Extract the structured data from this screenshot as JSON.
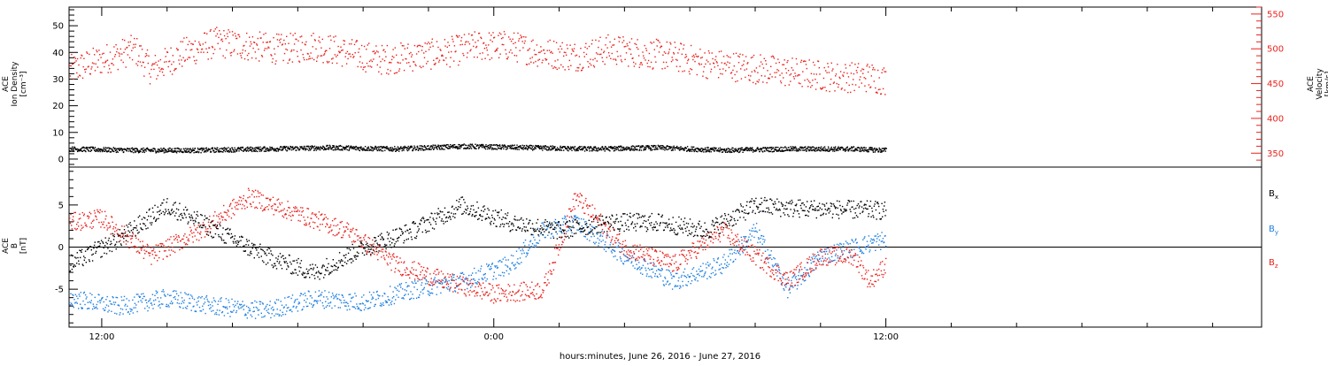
{
  "x_title": "hours:minutes, June 26, 2016 - June 27, 2016",
  "x_ticks": [
    "12:00",
    "0:00",
    "12:00"
  ],
  "colors": {
    "black": "#000000",
    "red": "#e8221c",
    "blue": "#1f7fe0"
  },
  "chart_data": [
    {
      "type": "scatter",
      "panel": "top",
      "left_ylabel_lines": [
        "ACE",
        "Ion Density",
        "[cm⁻³]"
      ],
      "right_ylabel_lines": [
        "ACE",
        "Velocity",
        "[km/s]"
      ],
      "left_ylim": [
        -3,
        57
      ],
      "left_ticks": [
        0,
        10,
        20,
        30,
        40,
        50
      ],
      "left_tick_labels": [
        "0",
        "10",
        "20",
        "30",
        "40",
        "50"
      ],
      "right_ylim": [
        330,
        560
      ],
      "right_ticks": [
        350,
        400,
        450,
        500,
        550
      ],
      "right_tick_labels": [
        "350",
        "400",
        "450",
        "500",
        "550"
      ],
      "x_unit": "hours since 2016-06-26 00:00",
      "xlim": [
        11.0,
        47.5
      ],
      "series": [
        {
          "name": "",
          "axis": "left",
          "color": "#000000",
          "x": [
            11.0,
            13.0,
            15.0,
            17.0,
            19.0,
            21.0,
            23.0,
            25.0,
            27.0,
            29.0,
            31.0,
            33.0,
            35.0,
            36.0
          ],
          "y": [
            4,
            3.5,
            3.5,
            4,
            4.5,
            4,
            5,
            4.5,
            4,
            4.5,
            3.5,
            4,
            4,
            3.5
          ]
        },
        {
          "name": "",
          "axis": "right",
          "color": "#e8221c",
          "x": [
            11.0,
            12.0,
            13.0,
            13.5,
            14.5,
            15.5,
            16.5,
            17.5,
            18.5,
            19.5,
            20.5,
            21.5,
            22.5,
            23.5,
            24.5,
            25.5,
            26.5,
            27.5,
            28.5,
            29.5,
            30.5,
            31.5,
            32.5,
            33.5,
            34.5,
            35.5,
            36.0
          ],
          "y": [
            470,
            485,
            500,
            470,
            495,
            510,
            505,
            500,
            505,
            495,
            485,
            490,
            495,
            505,
            505,
            495,
            490,
            500,
            495,
            490,
            480,
            475,
            470,
            465,
            460,
            460,
            455
          ]
        }
      ]
    },
    {
      "type": "scatter",
      "panel": "bottom",
      "left_ylabel_lines": [
        "ACE",
        "B",
        "[nT]"
      ],
      "ylim": [
        -9.5,
        9.5
      ],
      "left_ticks": [
        -5,
        0,
        5
      ],
      "left_tick_labels": [
        "-5",
        "0",
        "5"
      ],
      "zero_line": true,
      "x_unit": "hours since 2016-06-26 00:00",
      "xlim": [
        11.0,
        47.5
      ],
      "legend_placement": "right",
      "series": [
        {
          "name": "B",
          "sub": "x",
          "color": "#000000",
          "x": [
            11.0,
            12.5,
            14.0,
            15.5,
            17.0,
            18.5,
            20.0,
            21.5,
            23.0,
            24.5,
            26.0,
            27.5,
            29.0,
            30.5,
            31.5,
            32.0,
            33.0,
            34.0,
            35.0,
            36.0
          ],
          "y": [
            -2,
            1,
            5,
            2,
            -1,
            -3,
            0,
            2,
            5,
            3,
            2,
            3,
            3,
            2,
            4,
            5,
            4.7,
            4.6,
            4.5,
            4.4
          ]
        },
        {
          "name": "B",
          "sub": "y",
          "color": "#1f7fe0",
          "x": [
            11.0,
            12.5,
            14.0,
            15.5,
            17.0,
            18.5,
            20.0,
            21.5,
            23.0,
            24.5,
            25.5,
            26.5,
            28.0,
            29.5,
            31.0,
            32.0,
            33.0,
            34.0,
            35.0,
            36.0
          ],
          "y": [
            -6,
            -7,
            -6,
            -7,
            -7.5,
            -6,
            -6.5,
            -5,
            -4,
            -2,
            2,
            3,
            -1,
            -4,
            -2,
            2,
            -5,
            -1,
            0,
            1
          ]
        },
        {
          "name": "B",
          "sub": "z",
          "color": "#e8221c",
          "x": [
            11.0,
            12.0,
            13.5,
            15.0,
            16.5,
            18.0,
            19.5,
            21.0,
            22.5,
            24.0,
            25.5,
            26.5,
            28.0,
            29.5,
            31.0,
            32.0,
            33.0,
            34.0,
            35.0,
            35.5,
            36.0
          ],
          "y": [
            3,
            3.5,
            -1,
            2,
            6,
            4,
            2,
            -2,
            -4,
            -5.5,
            -5,
            6,
            0,
            -2,
            2,
            -1,
            -4,
            -1,
            -1,
            -4,
            -2
          ]
        }
      ]
    }
  ]
}
